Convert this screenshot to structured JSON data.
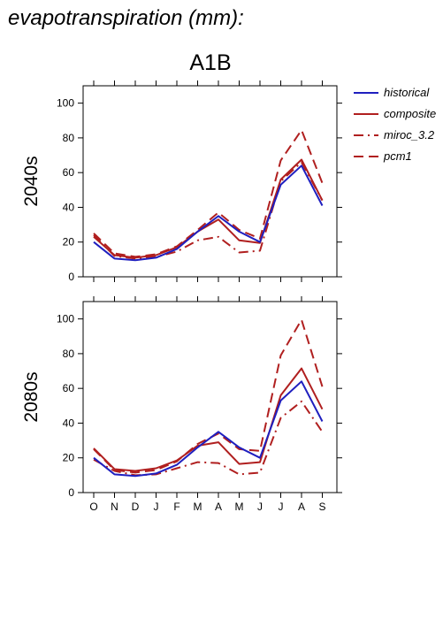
{
  "title": "evapotranspiration (mm):",
  "scenario": "A1B",
  "colors": {
    "historical": "#1f1fbf",
    "projection": "#b01f1f"
  },
  "chart_data": [
    {
      "type": "line",
      "panel_label": "2040s",
      "categories": [
        "O",
        "N",
        "D",
        "J",
        "F",
        "M",
        "A",
        "M",
        "J",
        "J",
        "A",
        "S"
      ],
      "ylim": [
        0,
        110
      ],
      "yticks": [
        0,
        20,
        40,
        60,
        80,
        100
      ],
      "grid": false,
      "legend_position": "right",
      "series": [
        {
          "name": "historical",
          "style": "solid",
          "color": "#1f1fbf",
          "values": [
            20,
            10.5,
            9.5,
            11,
            16,
            26,
            35,
            26,
            20,
            53,
            64,
            41
          ]
        },
        {
          "name": "composite",
          "style": "solid",
          "color": "#b01f1f",
          "values": [
            23,
            12.5,
            11,
            12.5,
            17,
            26,
            33,
            21,
            19.5,
            56,
            67.5,
            44
          ]
        },
        {
          "name": "miroc_3.2",
          "style": "dash-dot",
          "color": "#b01f1f",
          "values": [
            24,
            12,
            10.5,
            11.5,
            14.5,
            21,
            23,
            14,
            15,
            55,
            66,
            44
          ]
        },
        {
          "name": "pcm1",
          "style": "dashed",
          "color": "#b01f1f",
          "values": [
            25,
            13.5,
            11.5,
            13,
            17.5,
            27,
            37,
            27,
            22,
            67,
            84.5,
            54
          ]
        }
      ]
    },
    {
      "type": "line",
      "panel_label": "2080s",
      "categories": [
        "O",
        "N",
        "D",
        "J",
        "F",
        "M",
        "A",
        "M",
        "J",
        "J",
        "A",
        "S"
      ],
      "ylim": [
        0,
        110
      ],
      "yticks": [
        0,
        20,
        40,
        60,
        80,
        100
      ],
      "grid": false,
      "series": [
        {
          "name": "historical",
          "style": "solid",
          "color": "#1f1fbf",
          "values": [
            20,
            10.5,
            9.5,
            11,
            16,
            26,
            35,
            26,
            20,
            53,
            64,
            41
          ]
        },
        {
          "name": "composite",
          "style": "solid",
          "color": "#b01f1f",
          "values": [
            25.5,
            13.5,
            12.5,
            14,
            18.5,
            27,
            29,
            16.5,
            17.5,
            56,
            71.5,
            48
          ]
        },
        {
          "name": "miroc_3.2",
          "style": "dash-dot",
          "color": "#b01f1f",
          "values": [
            19,
            12.5,
            10,
            10.5,
            14,
            17.5,
            17,
            10.5,
            11.5,
            43,
            52.5,
            35
          ]
        },
        {
          "name": "pcm1",
          "style": "dashed",
          "color": "#b01f1f",
          "values": [
            25,
            13,
            11.5,
            13,
            18,
            28,
            34,
            25,
            24,
            79,
            99.5,
            61
          ]
        }
      ]
    }
  ]
}
